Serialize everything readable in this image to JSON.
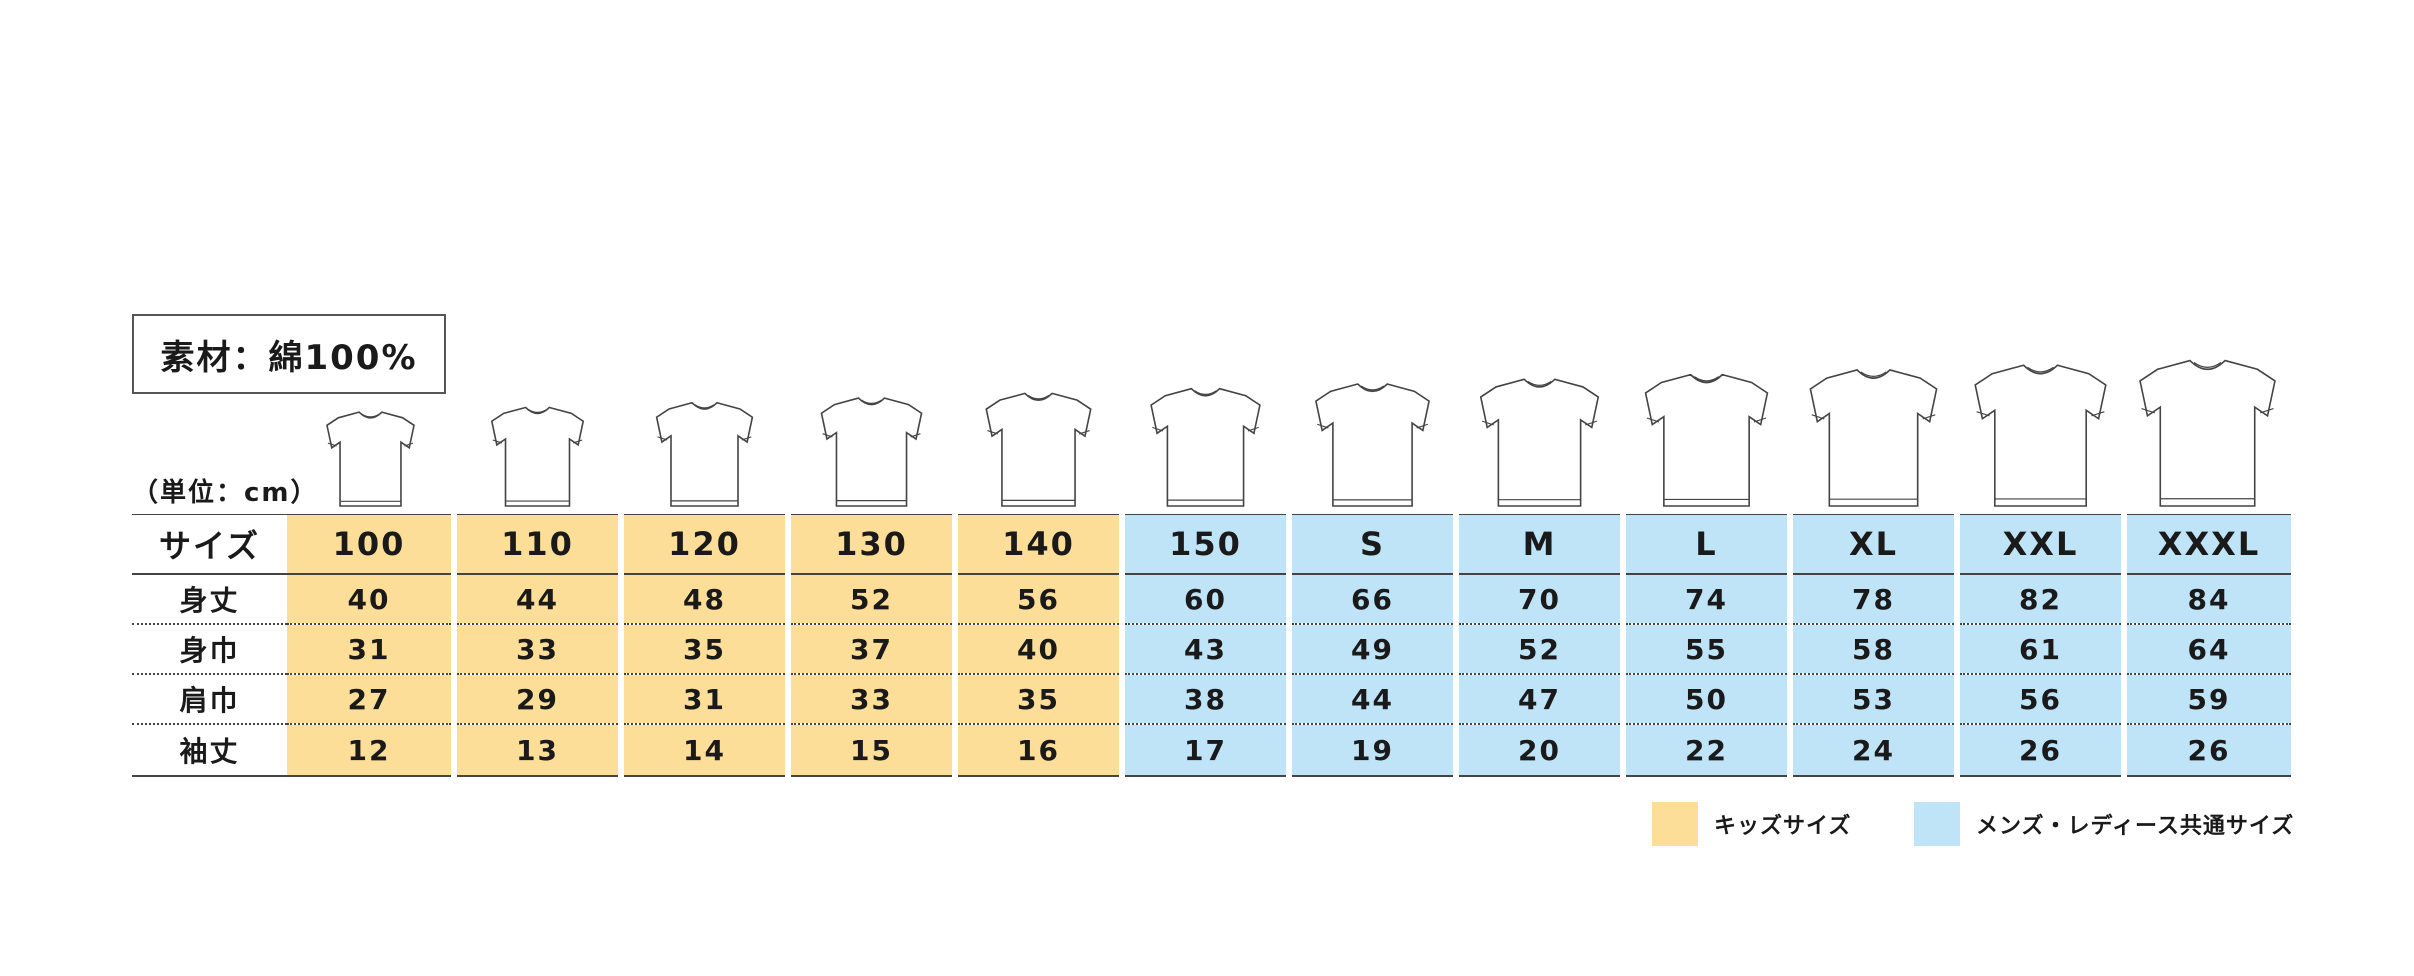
{
  "material": "素材：綿100%",
  "unit": "（単位：cm）",
  "table": {
    "header_label": "サイズ",
    "sizes": [
      {
        "label": "100",
        "group": "kids"
      },
      {
        "label": "110",
        "group": "kids"
      },
      {
        "label": "120",
        "group": "kids"
      },
      {
        "label": "130",
        "group": "kids"
      },
      {
        "label": "140",
        "group": "kids"
      },
      {
        "label": "150",
        "group": "adult"
      },
      {
        "label": "S",
        "group": "adult"
      },
      {
        "label": "M",
        "group": "adult"
      },
      {
        "label": "L",
        "group": "adult"
      },
      {
        "label": "XL",
        "group": "adult"
      },
      {
        "label": "XXL",
        "group": "adult"
      },
      {
        "label": "XXXL",
        "group": "adult"
      }
    ],
    "rows": [
      {
        "label": "身丈",
        "values": [
          "40",
          "44",
          "48",
          "52",
          "56",
          "60",
          "66",
          "70",
          "74",
          "78",
          "82",
          "84"
        ]
      },
      {
        "label": "身巾",
        "values": [
          "31",
          "33",
          "35",
          "37",
          "40",
          "43",
          "49",
          "52",
          "55",
          "58",
          "61",
          "64"
        ]
      },
      {
        "label": "肩巾",
        "values": [
          "27",
          "29",
          "31",
          "33",
          "35",
          "38",
          "44",
          "47",
          "50",
          "53",
          "56",
          "59"
        ]
      },
      {
        "label": "袖丈",
        "values": [
          "12",
          "13",
          "14",
          "15",
          "16",
          "17",
          "19",
          "20",
          "22",
          "24",
          "26",
          "26"
        ]
      }
    ]
  },
  "legend": {
    "kids": {
      "label": "キッズサイズ",
      "color": "#fcde99"
    },
    "adult": {
      "label": "メンズ・レディース共通サイズ",
      "color": "#bfe3f7"
    }
  }
}
